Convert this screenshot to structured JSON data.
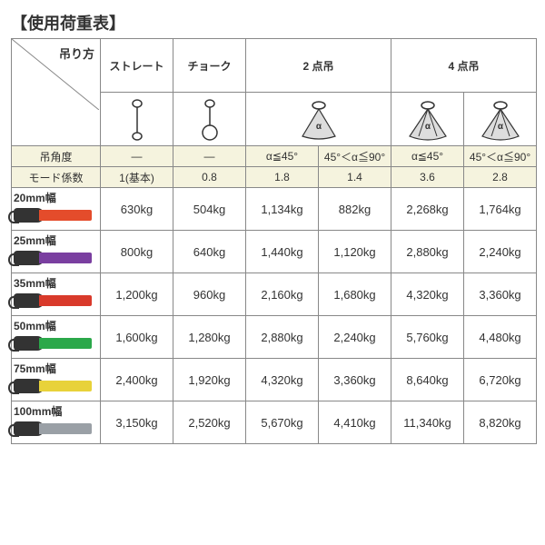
{
  "title": "【使用荷重表】",
  "corner_label": "吊り方",
  "columns": {
    "straight": {
      "label": "ストレート",
      "angle": "—",
      "coef": "1(基本)"
    },
    "choke": {
      "label": "チョーク",
      "angle": "—",
      "coef": "0.8"
    },
    "two_point": {
      "label": "2 点吊",
      "sub": [
        {
          "angle": "α≦45°",
          "coef": "1.8"
        },
        {
          "angle": "45°＜α≦90°",
          "coef": "1.4"
        }
      ]
    },
    "four_point": {
      "label": "4 点吊",
      "sub": [
        {
          "angle": "α≦45°",
          "coef": "3.6"
        },
        {
          "angle": "45°＜α≦90°",
          "coef": "2.8"
        }
      ]
    }
  },
  "angle_row_label": "吊角度",
  "coef_row_label": "モード係数",
  "colors": {
    "header_bg": "#f5f3de",
    "border": "#888888",
    "text": "#333333",
    "grip": "#333333",
    "bg": "#ffffff"
  },
  "rows": [
    {
      "label": "20mm幅",
      "strap_color": "#e44c2b",
      "values": [
        "630kg",
        "504kg",
        "1,134kg",
        "882kg",
        "2,268kg",
        "1,764kg"
      ]
    },
    {
      "label": "25mm幅",
      "strap_color": "#7a3fa0",
      "values": [
        "800kg",
        "640kg",
        "1,440kg",
        "1,120kg",
        "2,880kg",
        "2,240kg"
      ]
    },
    {
      "label": "35mm幅",
      "strap_color": "#d93a2b",
      "values": [
        "1,200kg",
        "960kg",
        "2,160kg",
        "1,680kg",
        "4,320kg",
        "3,360kg"
      ]
    },
    {
      "label": "50mm幅",
      "strap_color": "#2ba84a",
      "values": [
        "1,600kg",
        "1,280kg",
        "2,880kg",
        "2,240kg",
        "5,760kg",
        "4,480kg"
      ]
    },
    {
      "label": "75mm幅",
      "strap_color": "#e8d23a",
      "values": [
        "2,400kg",
        "1,920kg",
        "4,320kg",
        "3,360kg",
        "8,640kg",
        "6,720kg"
      ]
    },
    {
      "label": "100mm幅",
      "strap_color": "#9aa0a6",
      "values": [
        "3,150kg",
        "2,520kg",
        "5,670kg",
        "4,410kg",
        "11,340kg",
        "8,820kg"
      ]
    }
  ]
}
